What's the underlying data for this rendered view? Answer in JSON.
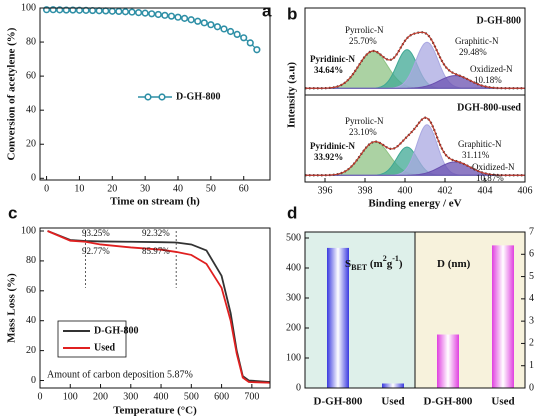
{
  "chart_data": [
    {
      "type": "line",
      "label": "a",
      "xlabel": "Time on stream (h)",
      "ylabel": "Conversion of acetylene (%)",
      "x": [
        0,
        2,
        4,
        6,
        8,
        10,
        12,
        14,
        16,
        18,
        20,
        22,
        24,
        26,
        28,
        30,
        32,
        34,
        36,
        38,
        40,
        42,
        44,
        46,
        48,
        50,
        52,
        54,
        56,
        58,
        60,
        62,
        64
      ],
      "xlim": [
        -2,
        68
      ],
      "xticks": [
        0,
        10,
        20,
        30,
        40,
        50,
        60
      ],
      "ylim": [
        -1,
        100
      ],
      "yticks": [
        0,
        20,
        40,
        60,
        80,
        100
      ],
      "series": [
        {
          "name": "D-GH-800",
          "color": "#2e8fa6",
          "values": [
            99,
            99,
            98.9,
            98.8,
            98.8,
            98.7,
            98.6,
            98.5,
            98.4,
            98.3,
            98.1,
            98,
            97.8,
            97.6,
            97.3,
            97,
            96.6,
            96.2,
            95.7,
            95.2,
            94.6,
            93.9,
            93.1,
            92.2,
            91.3,
            90.2,
            89,
            87.7,
            86.2,
            84.5,
            82.5,
            79.5,
            75.5
          ]
        }
      ]
    },
    {
      "type": "xps",
      "label": "b",
      "xlabel": "Binding energy / eV",
      "ylabel": "Intensity (a.u)",
      "xlim": [
        395,
        406
      ],
      "xticks": [
        396,
        398,
        400,
        402,
        404,
        406
      ],
      "ylim": [
        -0.05,
        1
      ],
      "fit_color": "#c0392b",
      "panels": [
        {
          "title": "D-GH-800",
          "components": [
            {
              "name": "Pyridinic-N",
              "percent": "34.64%",
              "center": 398.4,
              "height": 0.5,
              "fwhm": 1.7,
              "color": "#8fc384"
            },
            {
              "name": "Pyrrolic-N",
              "percent": "25.70%",
              "center": 400.1,
              "height": 0.52,
              "fwhm": 1.2,
              "color": "#3fa894"
            },
            {
              "name": "Graphitic-N",
              "percent": "29.48%",
              "center": 401.1,
              "height": 0.62,
              "fwhm": 1.3,
              "color": "#aaa8e2"
            },
            {
              "name": "Oxidized-N",
              "percent": "10.18%",
              "center": 402.5,
              "height": 0.17,
              "fwhm": 1.8,
              "color": "#6a50b0"
            }
          ]
        },
        {
          "title": "DGH-800-used",
          "components": [
            {
              "name": "Pyridinic-N",
              "percent": "33.92%",
              "center": 398.5,
              "height": 0.45,
              "fwhm": 1.7,
              "color": "#8fc384"
            },
            {
              "name": "Pyrrolic-N",
              "percent": "23.10%",
              "center": 400.1,
              "height": 0.38,
              "fwhm": 1.2,
              "color": "#3fa894"
            },
            {
              "name": "Graphitic-N",
              "percent": "31.11%",
              "center": 401.1,
              "height": 0.68,
              "fwhm": 1.2,
              "color": "#aaa8e2"
            },
            {
              "name": "Oxidized-N",
              "percent": "10.87%",
              "center": 402.5,
              "height": 0.18,
              "fwhm": 1.8,
              "color": "#6a50b0"
            }
          ]
        }
      ]
    },
    {
      "type": "line",
      "label": "c",
      "xlabel": "Temperature (°C)",
      "ylabel": "Mass Loss (%)",
      "x": [
        25,
        100,
        150,
        200,
        300,
        400,
        450,
        500,
        550,
        600,
        630,
        650,
        670,
        690,
        760
      ],
      "xlim": [
        0,
        760
      ],
      "xticks": [
        0,
        100,
        200,
        300,
        400,
        500,
        600,
        700
      ],
      "ylim": [
        -5,
        102
      ],
      "yticks": [
        0,
        20,
        40,
        60,
        80,
        100
      ],
      "series": [
        {
          "name": "D-GH-800",
          "color": "#333333",
          "values": [
            100,
            94,
            93.3,
            93,
            92.8,
            92.5,
            92.3,
            91,
            87,
            70,
            45,
            20,
            3,
            0,
            -1
          ]
        },
        {
          "name": "Used",
          "color": "#e02020",
          "values": [
            100,
            93.5,
            92.8,
            91,
            89,
            87.5,
            86,
            84,
            78,
            62,
            40,
            18,
            2,
            -1,
            -1.5
          ]
        }
      ],
      "guide_x": [
        150,
        450
      ],
      "annotations": [
        "93.25%",
        "92.32%",
        "92.77%",
        "85.97%"
      ],
      "note": "Amount of carbon deposition 5.87%"
    },
    {
      "type": "bar",
      "label": "d",
      "categories": [
        "D-GH-800",
        "Used"
      ],
      "ylim": [
        0,
        520
      ],
      "yticks": [
        0,
        100,
        200,
        300,
        400,
        500
      ],
      "y2lim": [
        0,
        7
      ],
      "y2ticks": [
        0,
        1,
        2,
        3,
        4,
        5,
        6,
        7
      ],
      "panel_colors": [
        "#def0ea",
        "#f7f2dc"
      ],
      "series": [
        {
          "name_parts": [
            "S",
            "BET",
            " (m",
            "2",
            "g",
            "-1",
            ")"
          ],
          "color": "#3a3ae0",
          "values": [
            467,
            15
          ]
        },
        {
          "name_parts": [
            "D (nm)"
          ],
          "color": "#e040e0",
          "axis": "y2",
          "values": [
            2.4,
            6.4
          ]
        }
      ]
    }
  ]
}
